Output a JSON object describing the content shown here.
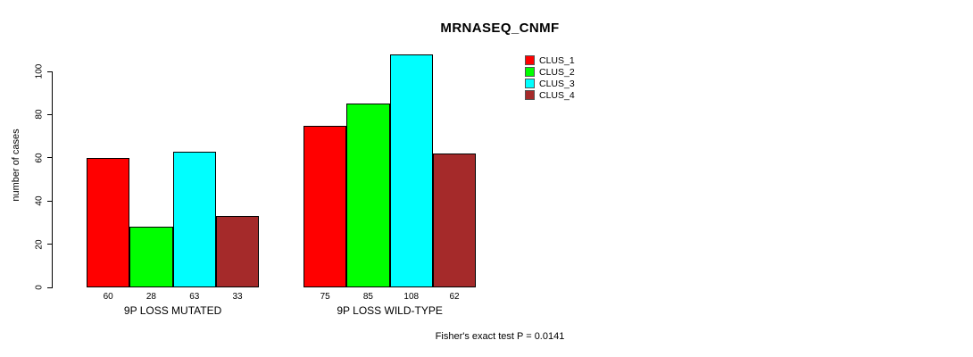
{
  "chart_data": {
    "type": "bar",
    "title": "MRNASEQ_CNMF",
    "xlabel": "",
    "ylabel": "number of cases",
    "ylim": [
      0,
      110
    ],
    "yticks": [
      0,
      20,
      40,
      60,
      80,
      100
    ],
    "grid": false,
    "categories": [
      "9P LOSS MUTATED",
      "9P LOSS WILD-TYPE"
    ],
    "series": [
      {
        "name": "CLUS_1",
        "color": "#FF0000",
        "values": [
          60,
          75
        ]
      },
      {
        "name": "CLUS_2",
        "color": "#00FF00",
        "values": [
          28,
          85
        ]
      },
      {
        "name": "CLUS_3",
        "color": "#00FFFF",
        "values": [
          63,
          108
        ]
      },
      {
        "name": "CLUS_4",
        "color": "#A52A2A",
        "values": [
          33,
          62
        ]
      }
    ],
    "bar_value_labels": [
      [
        "60",
        "28",
        "63",
        "33"
      ],
      [
        "75",
        "85",
        "108",
        "62"
      ]
    ],
    "legend": {
      "position": "top-right",
      "entries": [
        "CLUS_1",
        "CLUS_2",
        "CLUS_3",
        "CLUS_4"
      ]
    },
    "annotation": "Fisher's exact test P = 0.0141"
  }
}
